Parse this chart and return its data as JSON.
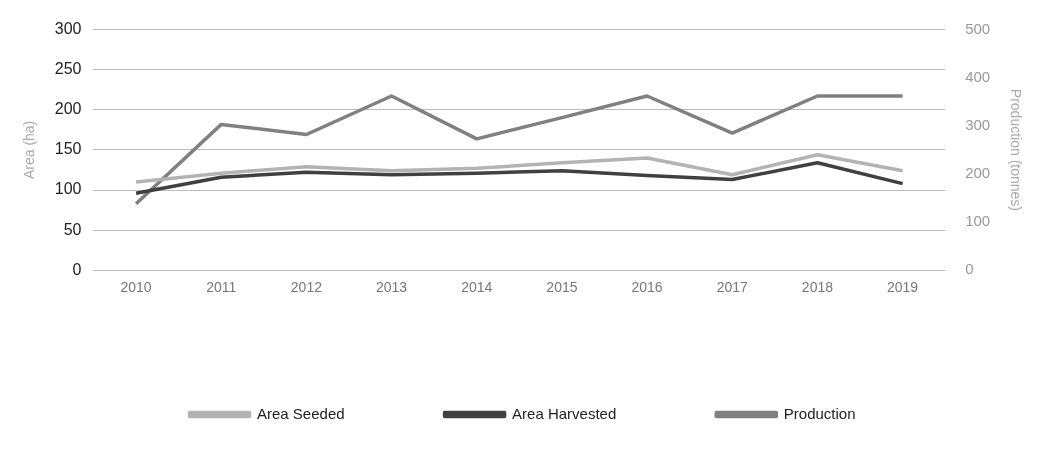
{
  "chart_data": {
    "type": "line",
    "ylabel": "Area (ha)",
    "y2label": "Production (tonnes)",
    "categories": [
      "2010",
      "2011",
      "2012",
      "2013",
      "2014",
      "2015",
      "2016",
      "2017",
      "2018",
      "2019"
    ],
    "series": [
      {
        "name": "Area Seeded",
        "color": "#b3b3b3",
        "values": [
          110,
          121,
          129,
          124,
          127,
          134,
          140,
          119,
          144,
          124
        ]
      },
      {
        "name": "Area Harvested",
        "color": "#404040",
        "values": [
          96,
          116,
          122,
          119,
          121,
          124,
          118,
          113,
          134,
          108
        ]
      },
      {
        "name": "Production",
        "color": "#808080",
        "axis": "y2",
        "values": [
          138,
          303,
          282,
          362,
          273,
          317,
          362,
          285,
          362,
          362
        ]
      }
    ],
    "ylim": [
      0,
      300
    ],
    "yticks": [
      0,
      50,
      100,
      150,
      200,
      250,
      300
    ],
    "y2lim": [
      0,
      500
    ],
    "y2ticks": [
      0,
      100,
      200,
      300,
      400,
      500
    ],
    "grid": "y",
    "legend": "bottom",
    "marker": "none",
    "line_style": "solid"
  }
}
